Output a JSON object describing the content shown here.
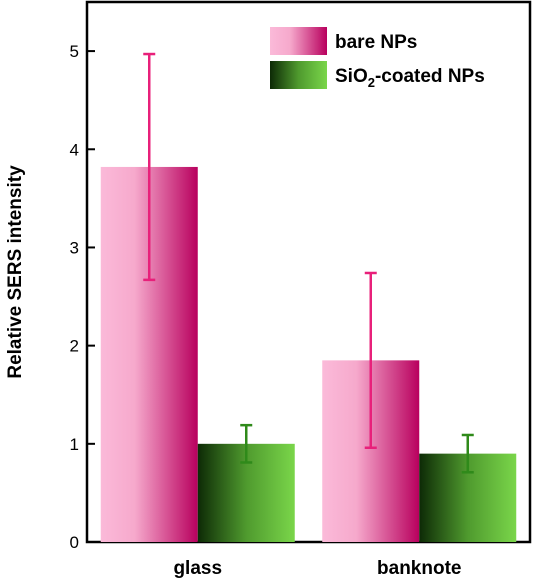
{
  "chart_data": {
    "type": "bar",
    "categories": [
      "glass",
      "banknote"
    ],
    "series": [
      {
        "name": "bare NPs",
        "values": [
          3.82,
          1.85
        ],
        "error_low": [
          2.67,
          0.96
        ],
        "error_high": [
          4.97,
          2.74
        ],
        "color_light": "#fbbad9",
        "color_dark": "#b8005e",
        "error_color": "#e8207a"
      },
      {
        "name": "SiO2-coated NPs",
        "name_parts": {
          "prefix": "SiO",
          "sub": "2",
          "suffix": "-coated NPs"
        },
        "values": [
          1.0,
          0.9
        ],
        "error_low": [
          0.81,
          0.71
        ],
        "error_high": [
          1.19,
          1.09
        ],
        "color_light": "#7ad64a",
        "color_dark": "#0d2a06",
        "error_color": "#2f8a1a"
      }
    ],
    "title": "",
    "xlabel": "",
    "ylabel": "Relative SERS intensity",
    "ylim": [
      0,
      5.5
    ],
    "yticks": [
      0,
      1,
      2,
      3,
      4,
      5
    ],
    "grid": false,
    "legend_position": "top-right"
  }
}
